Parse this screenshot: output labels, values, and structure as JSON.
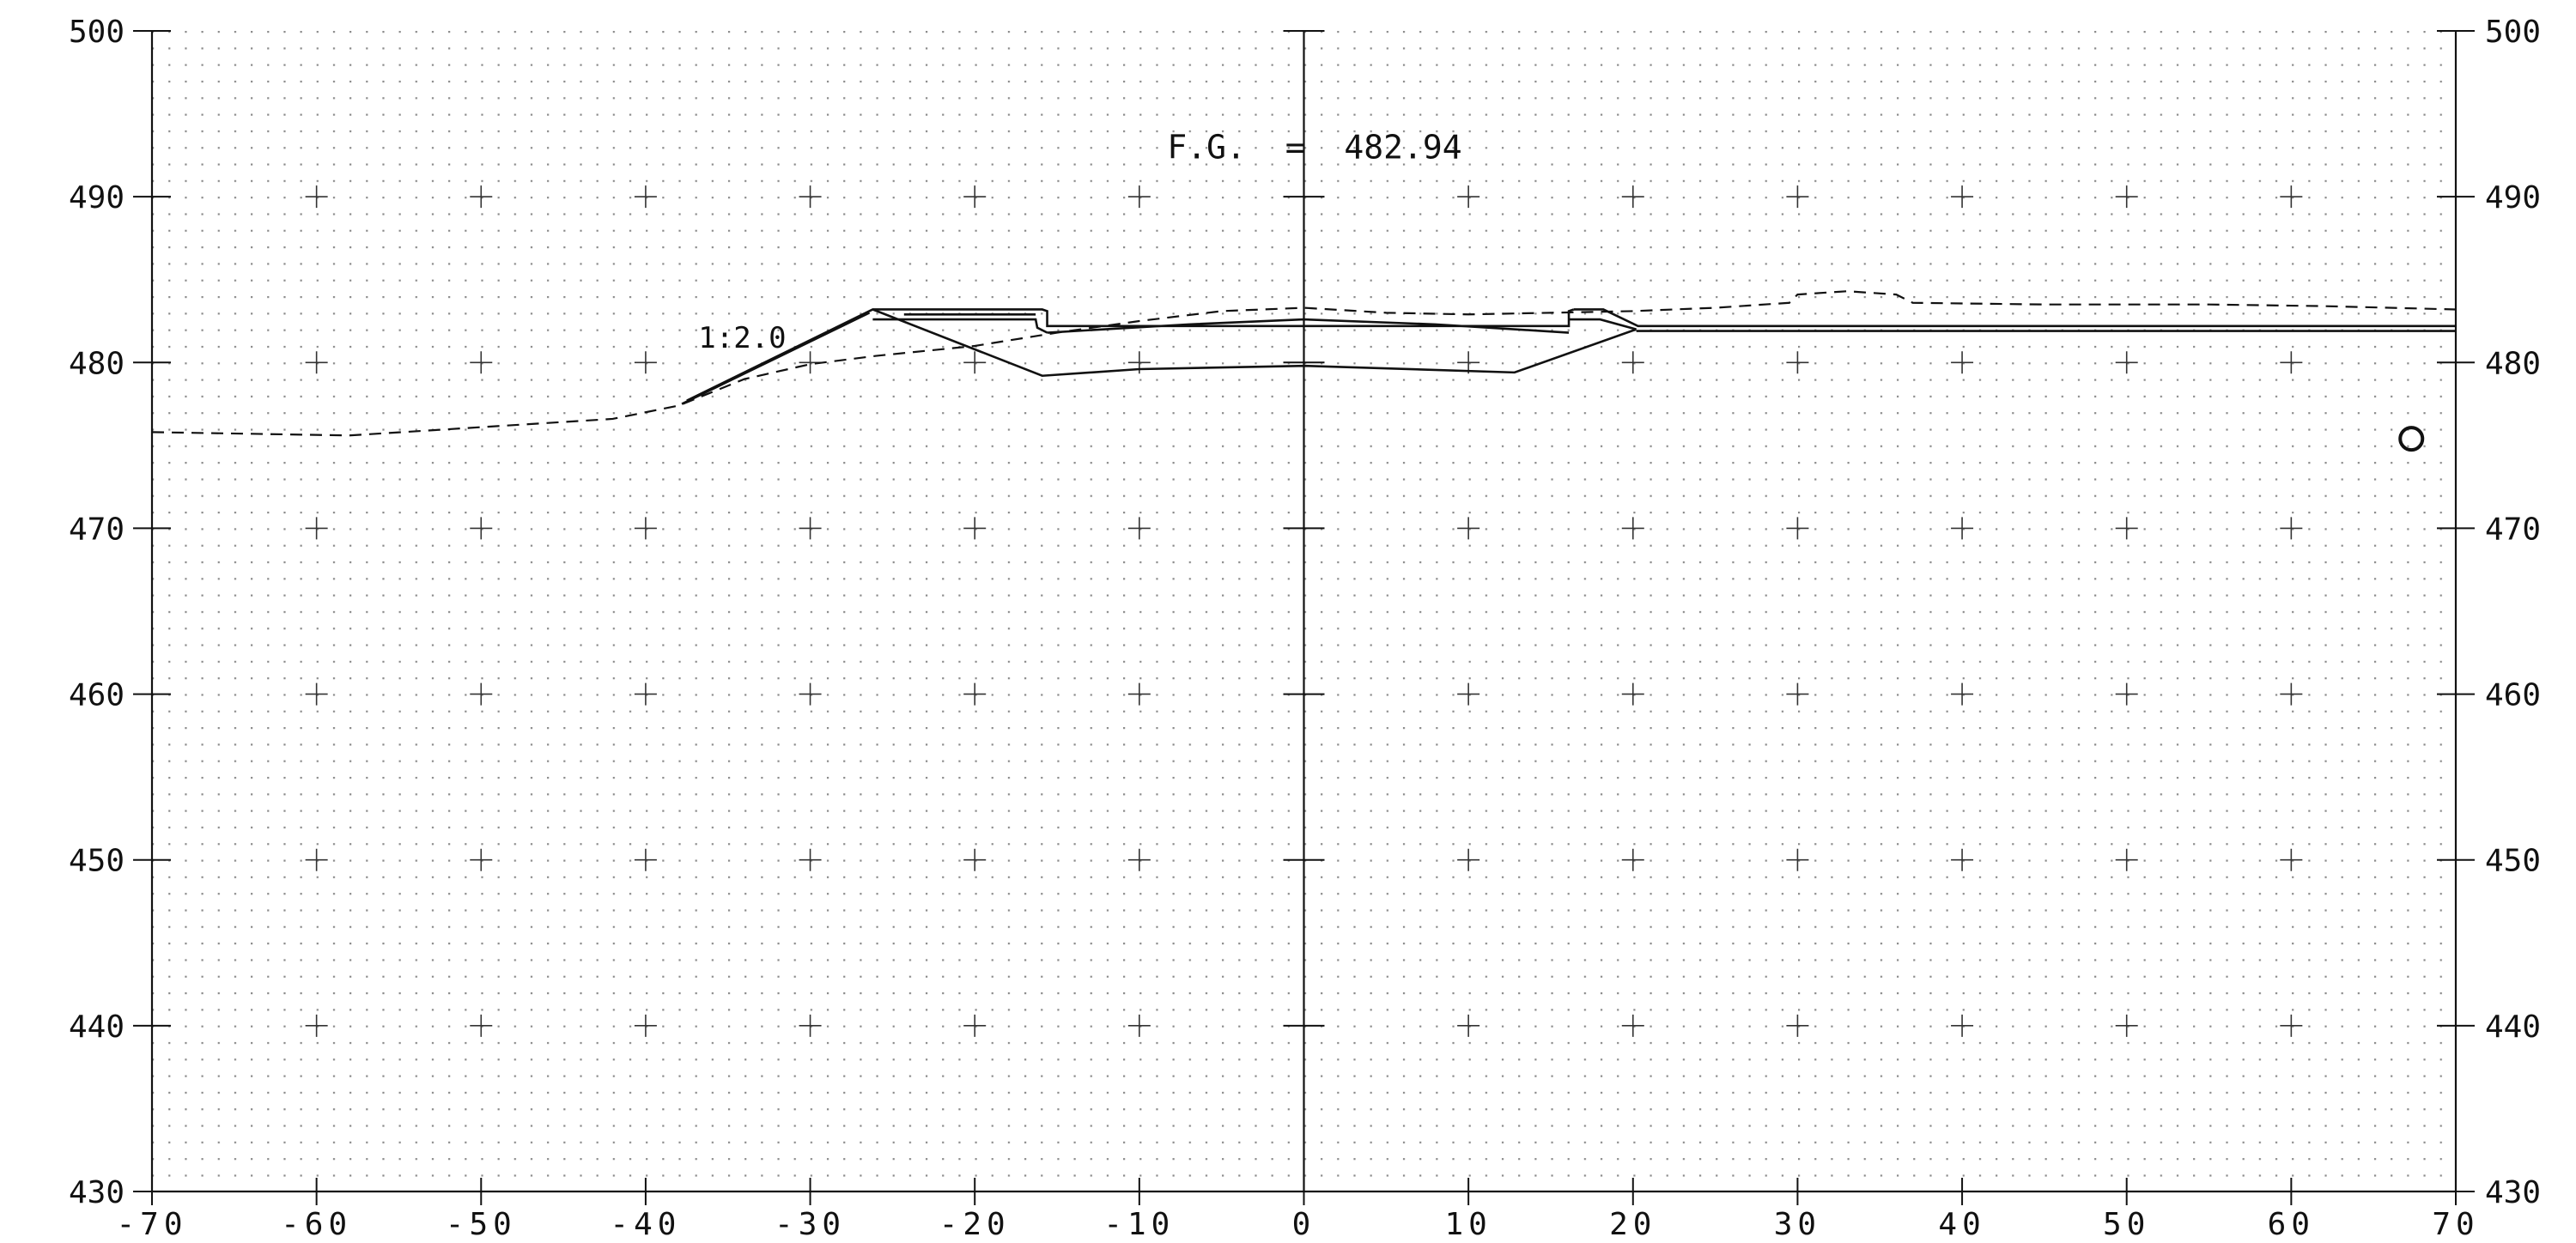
{
  "chart_data": {
    "type": "cross-section",
    "title": "",
    "xlabel": "",
    "ylabel": "",
    "xlim": [
      -70,
      70
    ],
    "ylim": [
      430,
      500
    ],
    "x_ticks": [
      -70,
      -60,
      -50,
      -40,
      -30,
      -20,
      -10,
      0,
      10,
      20,
      30,
      40,
      50,
      60,
      70
    ],
    "x_tick_labels": [
      "-70",
      "-60",
      "-50",
      "-40",
      "-30",
      "-20",
      "-10",
      "0",
      "10",
      "20",
      "30",
      "40",
      "50",
      "60",
      "70"
    ],
    "y_ticks": [
      430,
      440,
      450,
      460,
      470,
      480,
      490,
      500
    ],
    "y_tick_labels": [
      "430",
      "440",
      "450",
      "460",
      "470",
      "480",
      "490",
      "500"
    ],
    "grid": "dotted",
    "grid_crosses_x": [
      -60,
      -50,
      -40,
      -30,
      -20,
      -10,
      10,
      20,
      30,
      40,
      50,
      60
    ],
    "grid_crosses_y": [
      440,
      450,
      460,
      470,
      480,
      490
    ],
    "centerline_x": 0,
    "finished_grade_label": "F.G.  =  482.94",
    "finished_grade_value": 482.94,
    "slope_label": "1:2.0",
    "existing_ground": {
      "style": "dashed",
      "x": [
        -70,
        -58,
        -50,
        -42,
        -38,
        -34,
        -30,
        -26,
        -20,
        -15,
        -10,
        -5,
        0,
        5,
        10,
        15,
        20,
        25,
        29.5,
        30,
        33,
        36,
        37,
        45,
        55,
        62,
        70
      ],
      "y": [
        475.8,
        475.6,
        476.1,
        476.6,
        477.4,
        479.0,
        479.9,
        480.4,
        481.0,
        481.8,
        482.5,
        483.1,
        483.3,
        483.0,
        482.9,
        483.0,
        483.1,
        483.3,
        483.6,
        484.1,
        484.3,
        484.1,
        483.6,
        483.5,
        483.5,
        483.4,
        483.2
      ]
    },
    "design_section": {
      "style": "solid",
      "segments": [
        {
          "x": [
            -37.5,
            -26.2,
            -15.9,
            -15.6,
            -15.6,
            16.1,
            16.1,
            16.4
          ],
          "y": [
            477.7,
            483.2,
            483.2,
            483.1,
            482.2,
            482.2,
            483.1,
            483.2
          ]
        },
        {
          "x": [
            -26.2,
            -24.0,
            -16.3,
            -16.2,
            -15.6
          ],
          "y": [
            482.6,
            482.6,
            482.6,
            482.1,
            481.8
          ]
        },
        {
          "x": [
            -24.3,
            -16.3
          ],
          "y": [
            482.9,
            482.9
          ]
        },
        {
          "x": [
            -15.6,
            -7.0,
            0.0,
            8.0,
            16.1
          ],
          "y": [
            481.8,
            482.3,
            482.6,
            482.3,
            481.8
          ]
        },
        {
          "x": [
            16.1,
            18.0,
            20.2
          ],
          "y": [
            482.6,
            482.6,
            482.0
          ]
        },
        {
          "x": [
            16.4,
            18.2,
            20.3,
            70.0
          ],
          "y": [
            483.2,
            483.2,
            482.2,
            482.2
          ]
        },
        {
          "x": [
            20.2,
            70.0
          ],
          "y": [
            481.9,
            481.9
          ]
        },
        {
          "x": [
            -26.2,
            -15.9,
            -10.0,
            0.0,
            12.8,
            20.2
          ],
          "y": [
            483.2,
            479.2,
            479.6,
            479.8,
            479.4,
            482.0
          ]
        },
        {
          "x": [
            -37.8,
            -26.4
          ],
          "y": [
            477.5,
            483.0
          ]
        }
      ]
    },
    "marker": {
      "shape": "circle",
      "x": 67.3,
      "y": 475.4
    }
  }
}
